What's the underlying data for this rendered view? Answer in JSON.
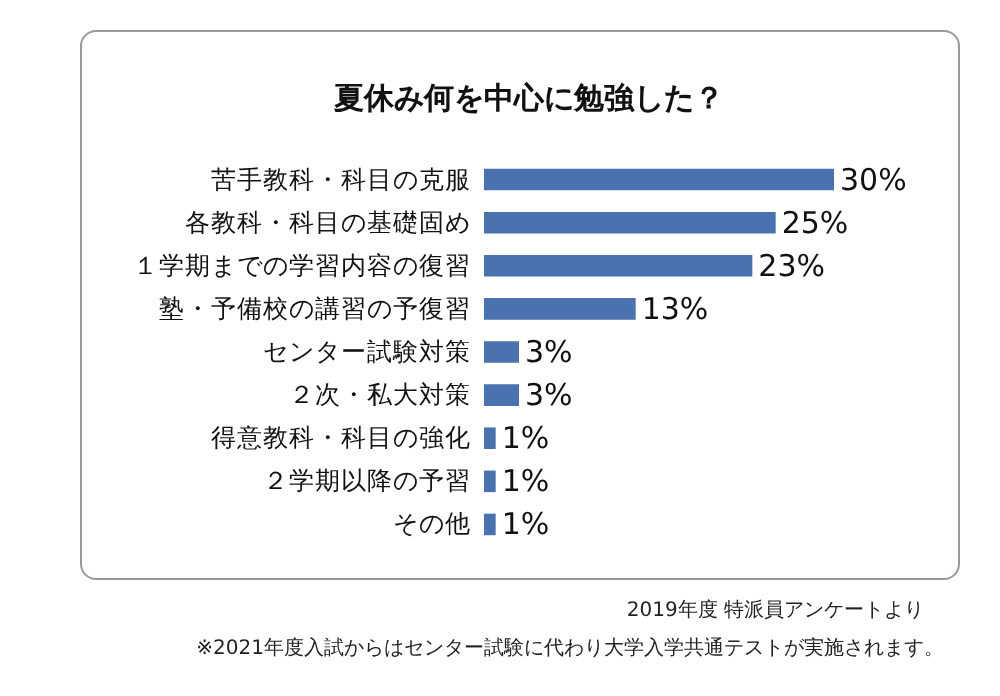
{
  "chart_data": {
    "type": "bar",
    "orientation": "horizontal",
    "title": "夏休み何を中心に勉強した？",
    "categories": [
      "苦手教科・科目の克服",
      "各教科・科目の基礎固め",
      "１学期までの学習内容の復習",
      "塾・予備校の講習の予復習",
      "センター試験対策",
      "２次・私大対策",
      "得意教科・科目の強化",
      "２学期以降の予習",
      "その他"
    ],
    "values": [
      30,
      25,
      23,
      13,
      3,
      3,
      1,
      1,
      1
    ],
    "value_labels": [
      "30%",
      "25%",
      "23%",
      "13%",
      "3%",
      "3%",
      "1%",
      "1%",
      "1%"
    ],
    "color": "#4a72b0",
    "annotations": [
      "2019年度 特派員アンケートより",
      "※2021年度入試からはセンター試験に代わり大学入学共通テストが実施されます。"
    ]
  }
}
